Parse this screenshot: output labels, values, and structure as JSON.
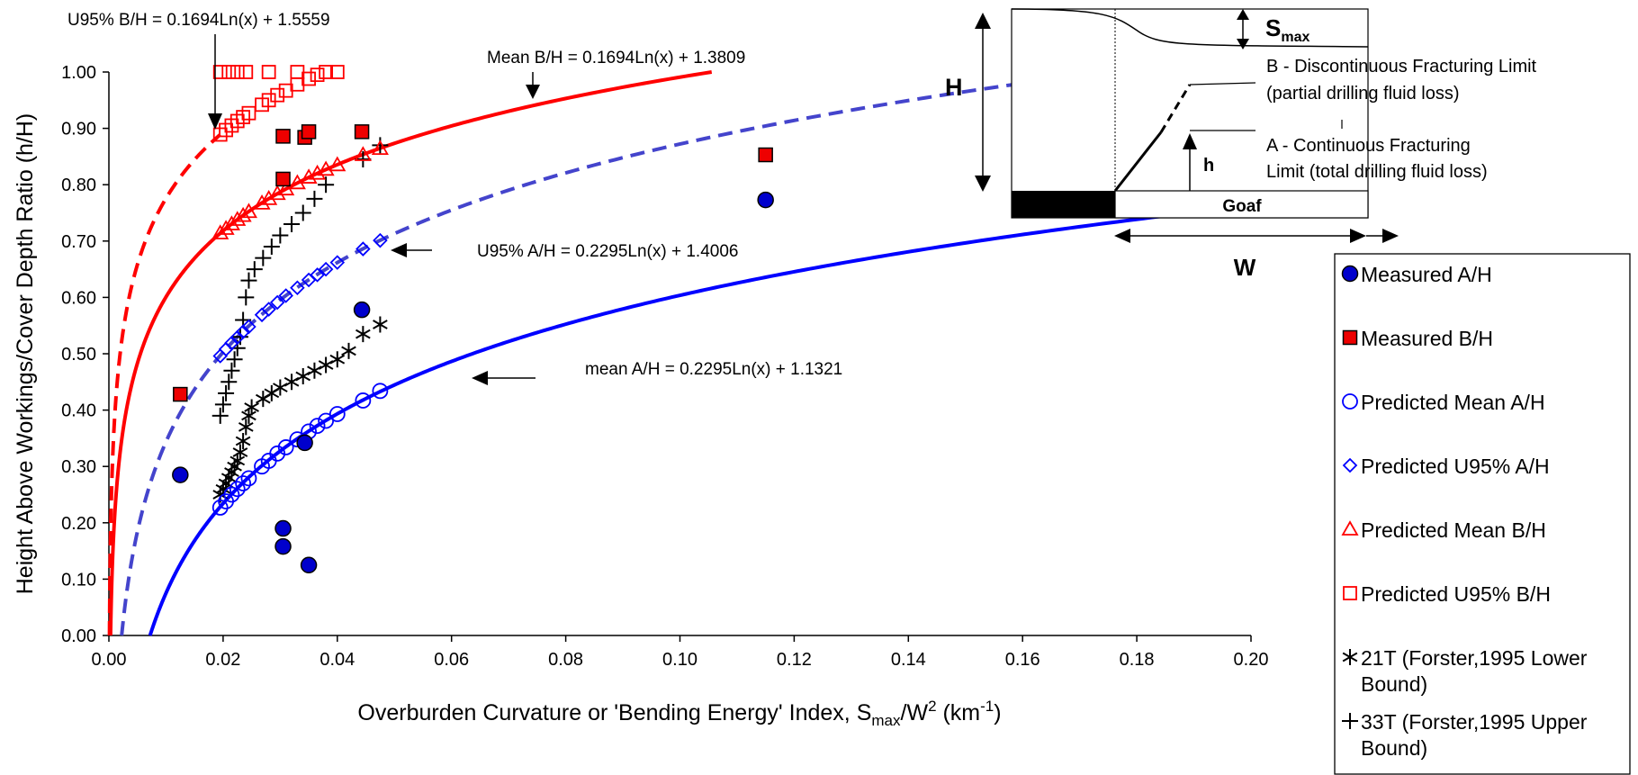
{
  "chart_data": {
    "type": "scatter",
    "xlabel": {
      "main": "Overburden Curvature or 'Bending Energy' Index, S",
      "sub1": "max",
      "mid": "/W",
      "sup": "2",
      "unit_pre": " (km",
      "unit_sup": "-1",
      "unit_post": ")"
    },
    "ylabel": "Height Above Workings/Cover Depth Ratio (h/H)",
    "xlim": [
      0,
      0.2
    ],
    "ylim": [
      0,
      1.0
    ],
    "x_ticks": [
      "0.00",
      "0.02",
      "0.04",
      "0.06",
      "0.08",
      "0.10",
      "0.12",
      "0.14",
      "0.16",
      "0.18",
      "0.20"
    ],
    "y_ticks": [
      "0.00",
      "0.10",
      "0.20",
      "0.30",
      "0.40",
      "0.50",
      "0.60",
      "0.70",
      "0.80",
      "0.90",
      "1.00"
    ],
    "grid": false,
    "legend_position": "right",
    "annotations": [
      {
        "text": "U95% B/H = 0.1694Ln(x) + 1.5559"
      },
      {
        "text": "Mean B/H = 0.1694Ln(x) + 1.3809"
      },
      {
        "text": "U95% A/H = 0.2295Ln(x) + 1.4006"
      },
      {
        "text": "mean A/H = 0.2295Ln(x) + 1.1321"
      }
    ],
    "curves": [
      {
        "label": "Mean B/H",
        "a": 0.1694,
        "b": 1.3809,
        "color": "#ff0000",
        "dash": false,
        "x_max": 0.108
      },
      {
        "label": "U95% B/H",
        "a": 0.1694,
        "b": 1.5559,
        "color": "#ff0000",
        "dash": true,
        "x_max": 0.0195
      },
      {
        "label": "U95% A/H",
        "a": 0.2295,
        "b": 1.4006,
        "color": "#4444cc",
        "dash": true,
        "x_max": 0.172
      },
      {
        "label": "mean A/H",
        "a": 0.2295,
        "b": 1.1321,
        "color": "#0000ff",
        "dash": false,
        "x_max": 0.184
      }
    ],
    "series": [
      {
        "name": "Measured A/H",
        "marker": "filled-circle",
        "color": "#0000cc",
        "points": [
          [
            0.0125,
            0.285
          ],
          [
            0.0305,
            0.19
          ],
          [
            0.0305,
            0.158
          ],
          [
            0.0343,
            0.342
          ],
          [
            0.035,
            0.125
          ],
          [
            0.0443,
            0.578
          ],
          [
            0.115,
            0.773
          ]
        ]
      },
      {
        "name": "Measured B/H",
        "marker": "filled-square",
        "color": "#ee0000",
        "points": [
          [
            0.0125,
            0.428
          ],
          [
            0.0305,
            0.81
          ],
          [
            0.0305,
            0.886
          ],
          [
            0.0343,
            0.884
          ],
          [
            0.035,
            0.894
          ],
          [
            0.0443,
            0.894
          ],
          [
            0.115,
            0.853
          ]
        ]
      },
      {
        "name": "Predicted Mean A/H",
        "marker": "open-circle",
        "color": "#0000ff",
        "points": [
          [
            0.0195,
            0.227
          ],
          [
            0.0205,
            0.238
          ],
          [
            0.0215,
            0.25
          ],
          [
            0.0225,
            0.26
          ],
          [
            0.0235,
            0.27
          ],
          [
            0.0245,
            0.279
          ],
          [
            0.0268,
            0.3
          ],
          [
            0.028,
            0.31
          ],
          [
            0.0295,
            0.323
          ],
          [
            0.031,
            0.334
          ],
          [
            0.033,
            0.348
          ],
          [
            0.035,
            0.362
          ],
          [
            0.0365,
            0.372
          ],
          [
            0.038,
            0.381
          ],
          [
            0.04,
            0.393
          ],
          [
            0.0445,
            0.417
          ],
          [
            0.0475,
            0.434
          ]
        ]
      },
      {
        "name": "Predicted U95% A/H",
        "marker": "open-diamond",
        "color": "#0000ff",
        "points": [
          [
            0.0195,
            0.496
          ],
          [
            0.0205,
            0.508
          ],
          [
            0.0215,
            0.519
          ],
          [
            0.0225,
            0.529
          ],
          [
            0.0235,
            0.539
          ],
          [
            0.0245,
            0.548
          ],
          [
            0.0268,
            0.569
          ],
          [
            0.028,
            0.579
          ],
          [
            0.0295,
            0.591
          ],
          [
            0.031,
            0.603
          ],
          [
            0.033,
            0.617
          ],
          [
            0.035,
            0.631
          ],
          [
            0.0365,
            0.64
          ],
          [
            0.038,
            0.65
          ],
          [
            0.04,
            0.662
          ],
          [
            0.0445,
            0.686
          ],
          [
            0.0475,
            0.701
          ]
        ]
      },
      {
        "name": "Predicted Mean B/H",
        "marker": "open-triangle",
        "color": "#ff0000",
        "points": [
          [
            0.0195,
            0.714
          ],
          [
            0.0205,
            0.722
          ],
          [
            0.0215,
            0.73
          ],
          [
            0.0225,
            0.738
          ],
          [
            0.0235,
            0.745
          ],
          [
            0.0245,
            0.752
          ],
          [
            0.0268,
            0.767
          ],
          [
            0.028,
            0.775
          ],
          [
            0.0295,
            0.784
          ],
          [
            0.031,
            0.792
          ],
          [
            0.033,
            0.803
          ],
          [
            0.035,
            0.813
          ],
          [
            0.0365,
            0.82
          ],
          [
            0.038,
            0.827
          ],
          [
            0.04,
            0.835
          ],
          [
            0.0445,
            0.853
          ],
          [
            0.0475,
            0.864
          ]
        ]
      },
      {
        "name": "Predicted U95% B/H",
        "marker": "open-square",
        "color": "#ff0000",
        "points": [
          [
            0.0195,
            0.889
          ],
          [
            0.0205,
            0.897
          ],
          [
            0.0215,
            0.905
          ],
          [
            0.0225,
            0.913
          ],
          [
            0.0235,
            0.92
          ],
          [
            0.0245,
            0.927
          ],
          [
            0.0268,
            0.942
          ],
          [
            0.028,
            0.95
          ],
          [
            0.0295,
            0.959
          ],
          [
            0.031,
            0.967
          ],
          [
            0.033,
            0.978
          ],
          [
            0.035,
            0.988
          ],
          [
            0.0365,
            0.995
          ],
          [
            0.038,
            1.0
          ],
          [
            0.04,
            1.0
          ],
          [
            0.0195,
            1.0
          ],
          [
            0.021,
            1.0
          ],
          [
            0.0225,
            1.0
          ],
          [
            0.024,
            1.0
          ],
          [
            0.028,
            1.0
          ],
          [
            0.033,
            1.0
          ]
        ]
      },
      {
        "name": "21T (Forster,1995 Lower Bound)",
        "marker": "asterisk",
        "color": "#000000",
        "points": [
          [
            0.0195,
            0.25
          ],
          [
            0.02,
            0.26
          ],
          [
            0.0205,
            0.27
          ],
          [
            0.021,
            0.28
          ],
          [
            0.0215,
            0.29
          ],
          [
            0.022,
            0.3
          ],
          [
            0.0225,
            0.31
          ],
          [
            0.023,
            0.325
          ],
          [
            0.0235,
            0.345
          ],
          [
            0.024,
            0.37
          ],
          [
            0.0245,
            0.39
          ],
          [
            0.025,
            0.405
          ],
          [
            0.027,
            0.42
          ],
          [
            0.0285,
            0.43
          ],
          [
            0.03,
            0.44
          ],
          [
            0.032,
            0.45
          ],
          [
            0.034,
            0.46
          ],
          [
            0.036,
            0.47
          ],
          [
            0.038,
            0.48
          ],
          [
            0.04,
            0.49
          ],
          [
            0.042,
            0.505
          ],
          [
            0.0445,
            0.535
          ],
          [
            0.0475,
            0.552
          ]
        ]
      },
      {
        "name": "33T (Forster,1995 Upper Bound)",
        "marker": "plus",
        "color": "#000000",
        "points": [
          [
            0.0195,
            0.39
          ],
          [
            0.02,
            0.41
          ],
          [
            0.0205,
            0.43
          ],
          [
            0.021,
            0.45
          ],
          [
            0.0215,
            0.47
          ],
          [
            0.022,
            0.49
          ],
          [
            0.0225,
            0.51
          ],
          [
            0.023,
            0.53
          ],
          [
            0.0235,
            0.56
          ],
          [
            0.024,
            0.6
          ],
          [
            0.0245,
            0.63
          ],
          [
            0.0255,
            0.65
          ],
          [
            0.027,
            0.67
          ],
          [
            0.0285,
            0.69
          ],
          [
            0.03,
            0.71
          ],
          [
            0.032,
            0.73
          ],
          [
            0.034,
            0.75
          ],
          [
            0.036,
            0.775
          ],
          [
            0.038,
            0.8
          ],
          [
            0.0445,
            0.845
          ],
          [
            0.0475,
            0.87
          ]
        ]
      }
    ]
  },
  "inset": {
    "smax_label": "S",
    "smax_sub": "max",
    "h_big_label": "H",
    "h_small_label": "h",
    "w_label": "W",
    "goaf_label": "Goaf",
    "b_line1": "B - Discontinuous Fracturing Limit",
    "b_line2": "(partial drilling fluid loss)",
    "a_line1": "A - Continuous Fracturing",
    "a_line2": "Limit (total drilling fluid loss)"
  }
}
